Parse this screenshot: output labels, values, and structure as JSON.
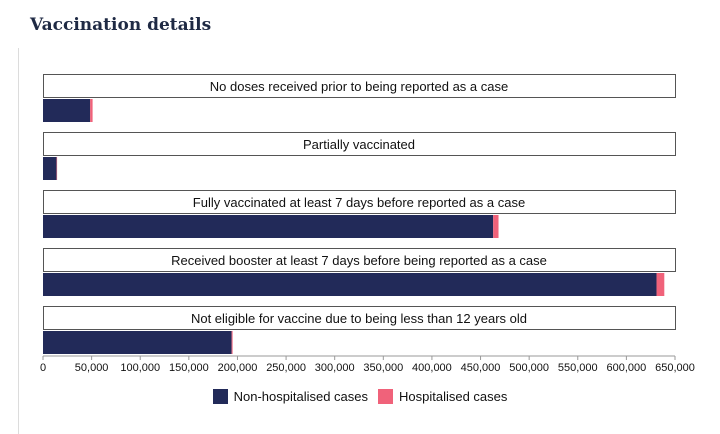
{
  "page": {
    "heading": "Vaccination details"
  },
  "colors": {
    "non_hospitalised": "#222a59",
    "hospitalised": "#f0627a",
    "panel_border": "#555555"
  },
  "chart_data": {
    "type": "bar",
    "orientation": "horizontal",
    "stacked": true,
    "categories": [
      "No doses received prior to being reported as a case",
      "Partially vaccinated",
      "Fully vaccinated at least 7 days before reported as a case",
      "Received booster at least 7 days before being reported as a case",
      "Not eligible for vaccine due to being less than 12 years old"
    ],
    "series": [
      {
        "name": "Non-hospitalised cases",
        "values": [
          48500,
          14000,
          463000,
          631000,
          194000
        ]
      },
      {
        "name": "Hospitalised cases",
        "values": [
          2500,
          500,
          5500,
          8000,
          1000
        ]
      }
    ],
    "xlim": [
      0,
      650000
    ],
    "x_ticks": [
      "0",
      "50,000",
      "100,000",
      "150,000",
      "200,000",
      "250,000",
      "300,000",
      "350,000",
      "400,000",
      "450,000",
      "500,000",
      "550,000",
      "600,000",
      "650,000"
    ],
    "x_tick_values": [
      0,
      50000,
      100000,
      150000,
      200000,
      250000,
      300000,
      350000,
      400000,
      450000,
      500000,
      550000,
      600000,
      650000
    ],
    "legend_position": "bottom",
    "grid": false
  }
}
